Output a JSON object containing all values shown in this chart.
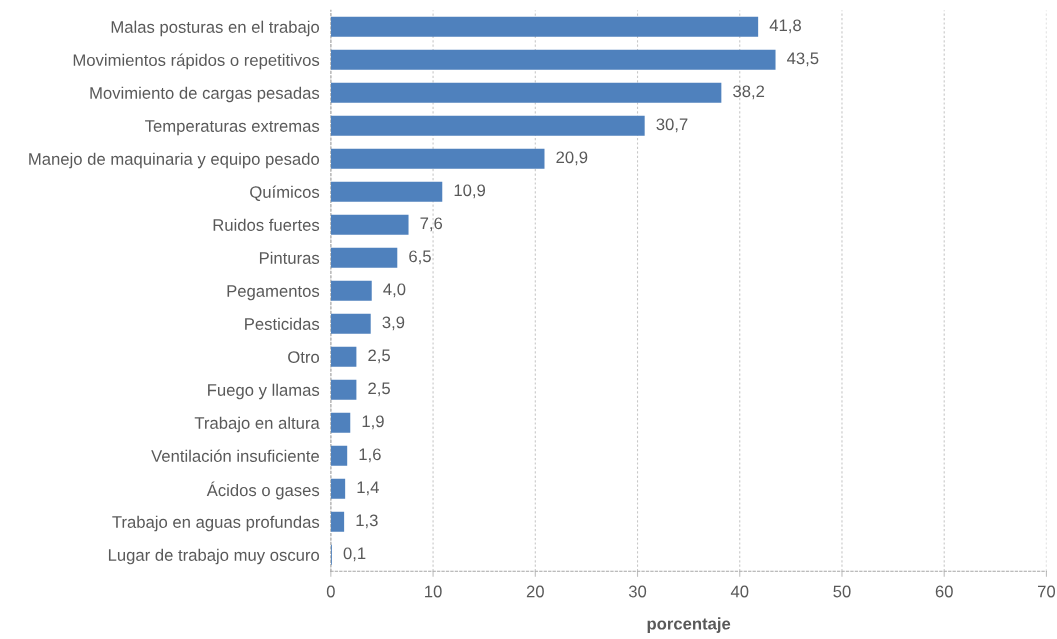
{
  "chart_data": {
    "type": "bar",
    "orientation": "horizontal",
    "xlabel": "porcentaje",
    "categories": [
      "Malas posturas en el trabajo",
      "Movimientos rápidos o repetitivos",
      "Movimiento de cargas pesadas",
      "Temperaturas extremas",
      "Manejo de maquinaria y equipo pesado",
      "Químicos",
      "Ruidos fuertes",
      "Pinturas",
      "Pegamentos",
      "Pesticidas",
      "Otro",
      "Fuego y llamas",
      "Trabajo en altura",
      "Ventilación insuficiente",
      "Ácidos o gases",
      "Trabajo en aguas profundas",
      "Lugar de trabajo muy oscuro"
    ],
    "values": [
      41.8,
      43.5,
      38.2,
      30.7,
      20.9,
      10.9,
      7.6,
      6.5,
      4.0,
      3.9,
      2.5,
      2.5,
      1.9,
      1.6,
      1.4,
      1.3,
      0.1
    ],
    "value_labels": [
      "41,8",
      "43,5",
      "38,2",
      "30,7",
      "20,9",
      "10,9",
      "7,6",
      "6,5",
      "4,0",
      "3,9",
      "2,5",
      "2,5",
      "1,9",
      "1,6",
      "1,4",
      "1,3",
      "0,1"
    ],
    "color": "#4f81bd",
    "xlim": [
      0,
      70
    ],
    "xticks": [
      0,
      10,
      20,
      30,
      40,
      50,
      60,
      70
    ],
    "grid": "x",
    "legend": false
  }
}
